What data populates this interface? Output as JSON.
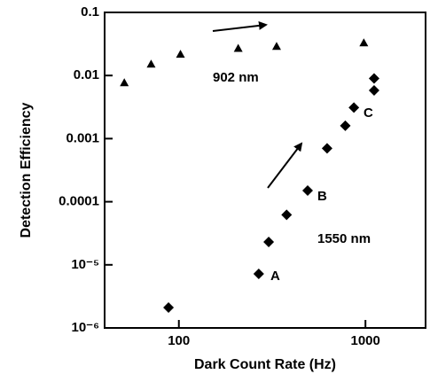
{
  "chart_data": {
    "type": "scatter",
    "xlabel": "Dark Count Rate (Hz)",
    "ylabel": "Detection Efficiency",
    "xscale": "log",
    "yscale": "log",
    "xlim": [
      40,
      2100
    ],
    "ylim": [
      1e-06,
      0.1
    ],
    "xticks": [
      100,
      1000
    ],
    "yticks": [
      {
        "value": 1e-06,
        "label": "10⁻⁶"
      },
      {
        "value": 1e-05,
        "label": "10⁻⁵"
      },
      0.0001,
      0.001,
      0.01,
      0.1
    ],
    "series": [
      {
        "name": "902 nm",
        "marker": "triangle",
        "color": "#000000",
        "x": [
          51,
          71,
          102,
          208,
          334,
          980
        ],
        "values": [
          0.0077,
          0.0152,
          0.0218,
          0.027,
          0.029,
          0.033
        ]
      },
      {
        "name": "1550 nm",
        "marker": "diamond",
        "color": "#000000",
        "x": [
          88,
          268,
          303,
          378,
          490,
          623,
          780,
          867,
          1113,
          1113
        ],
        "values": [
          2.1e-06,
          7.2e-06,
          2.3e-05,
          6.2e-05,
          0.00015,
          0.0007,
          0.0016,
          0.0031,
          0.0058,
          0.009
        ]
      }
    ],
    "annotations": [
      "A",
      "B",
      "C"
    ]
  }
}
